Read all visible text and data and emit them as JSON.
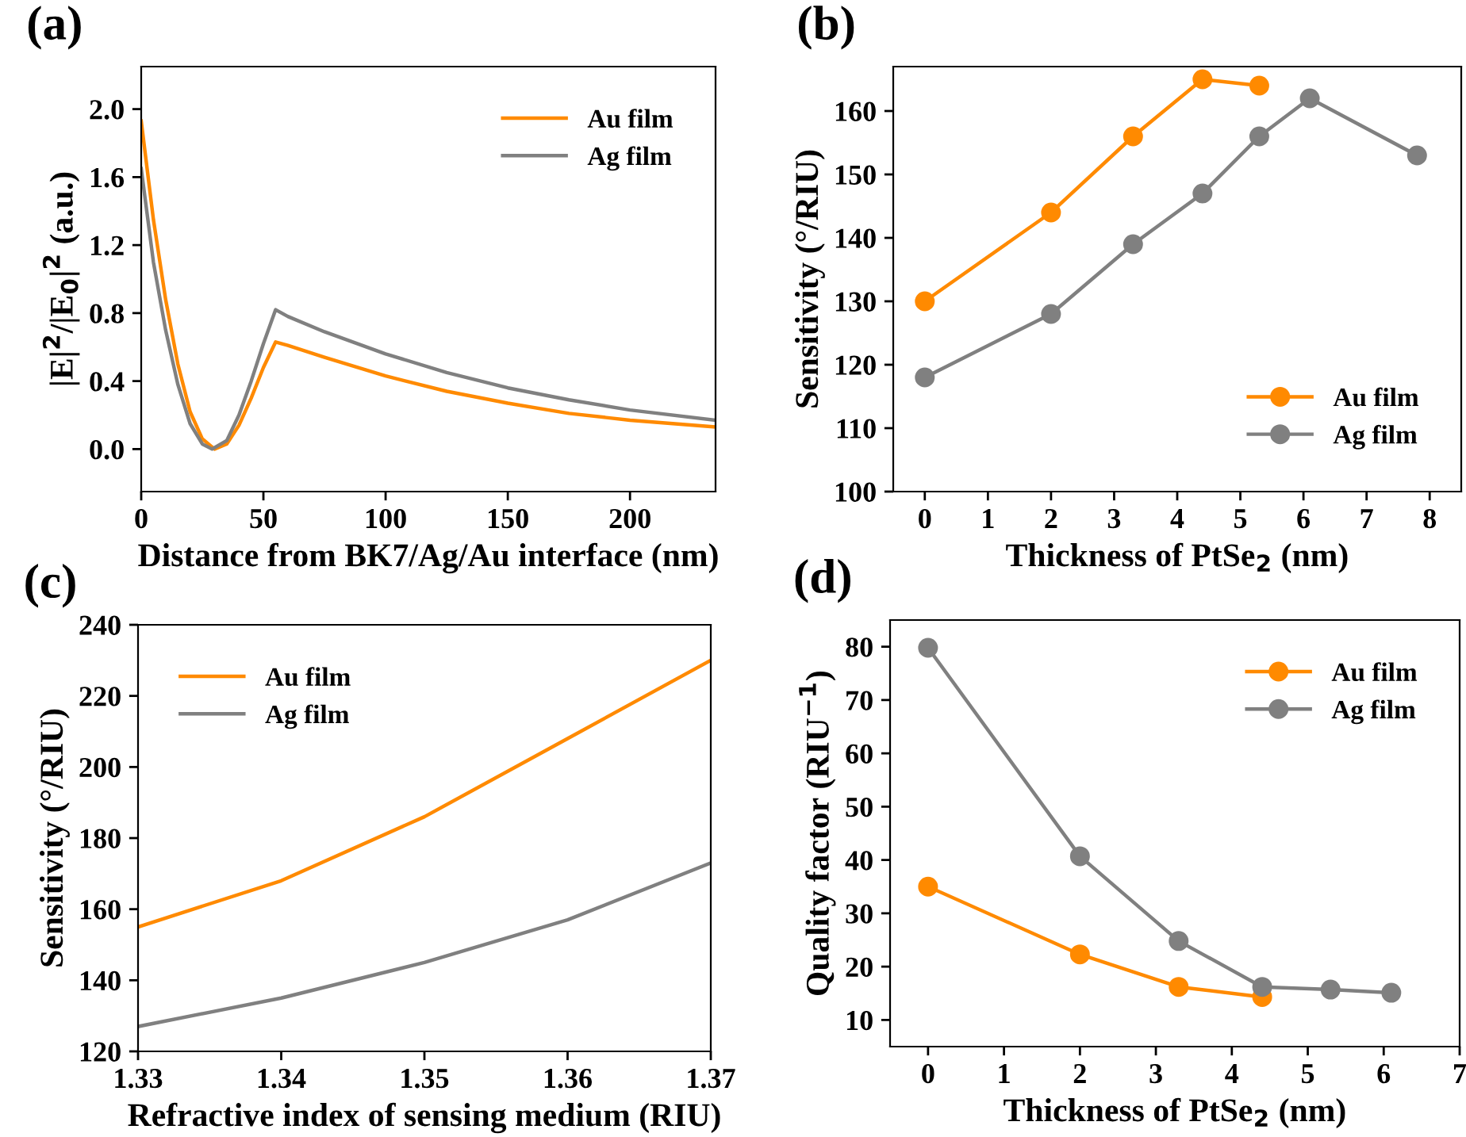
{
  "chart_data": [
    {
      "type": "line",
      "title": "(a)",
      "xlabel": "Distance from BK7/Ag/Au interface (nm)",
      "ylabel": "|E|$^{2}$/|E$_{0}$|$^{2}$ (a.u.)",
      "xlim": [
        0,
        235
      ],
      "xticks": [
        0,
        50,
        100,
        150,
        200
      ],
      "ylim": [
        -0.25,
        2.25
      ],
      "yticks": [
        {
          "value": 0,
          "label": "0.0"
        },
        {
          "value": 0.4,
          "label": "0.4"
        },
        {
          "value": 0.8,
          "label": "0.8"
        },
        {
          "value": 1.2,
          "label": "1.2"
        },
        {
          "value": 1.6,
          "label": "1.6"
        },
        {
          "value": 2.0,
          "label": "2.0"
        }
      ],
      "legend": "top right",
      "marker": "none",
      "grid": false,
      "series": [
        {
          "name": "Au film",
          "color": "#ff8a00",
          "x": [
            0,
            5,
            10,
            15,
            20,
            25,
            30,
            35,
            40,
            45,
            50,
            55,
            60,
            75,
            100,
            125,
            150,
            175,
            200,
            235
          ],
          "values": [
            1.93,
            1.35,
            0.88,
            0.5,
            0.22,
            0.06,
            0.0,
            0.03,
            0.14,
            0.3,
            0.48,
            0.63,
            0.61,
            0.54,
            0.43,
            0.34,
            0.27,
            0.21,
            0.17,
            0.13
          ]
        },
        {
          "name": "Ag film",
          "color": "#808080",
          "x": [
            0,
            5,
            10,
            15,
            20,
            25,
            29,
            35,
            40,
            45,
            50,
            55,
            60,
            75,
            100,
            125,
            150,
            175,
            200,
            235
          ],
          "values": [
            1.65,
            1.1,
            0.7,
            0.38,
            0.15,
            0.03,
            0.0,
            0.05,
            0.2,
            0.4,
            0.62,
            0.82,
            0.78,
            0.69,
            0.56,
            0.45,
            0.36,
            0.29,
            0.23,
            0.17
          ]
        }
      ]
    },
    {
      "type": "line",
      "title": "(b)",
      "xlabel": "Thickness of PtSe$_{2}$ (nm)",
      "ylabel": "Sensitivity (°/RIU)",
      "xlim": [
        -0.5,
        8.5
      ],
      "xticks": [
        0,
        1,
        2,
        3,
        4,
        5,
        6,
        7,
        8
      ],
      "ylim": [
        100,
        167
      ],
      "yticks": [
        100,
        110,
        120,
        130,
        140,
        150,
        160
      ],
      "legend": "bottom right",
      "marker": "circle",
      "grid": false,
      "series": [
        {
          "name": "Au film",
          "color": "#ff8a00",
          "x": [
            0,
            2,
            3.3,
            4.4,
            5.3
          ],
          "values": [
            130,
            144,
            156,
            165,
            164
          ]
        },
        {
          "name": "Ag film",
          "color": "#808080",
          "x": [
            0,
            2,
            3.3,
            4.4,
            5.3,
            6.1,
            7.8
          ],
          "values": [
            118,
            128,
            139,
            147,
            156,
            162,
            153
          ]
        }
      ]
    },
    {
      "type": "line",
      "title": "(c)",
      "xlabel": "Refractive index of sensing medium (RIU)",
      "ylabel": "Sensitivity (°/RIU)",
      "xlim": [
        1.33,
        1.37
      ],
      "xticks": [
        1.33,
        1.34,
        1.35,
        1.36,
        1.37
      ],
      "ylim": [
        120,
        240
      ],
      "yticks": [
        120,
        140,
        160,
        180,
        200,
        220,
        240
      ],
      "legend": "top left",
      "marker": "none",
      "grid": false,
      "series": [
        {
          "name": "Au film",
          "color": "#ff8a00",
          "x": [
            1.33,
            1.34,
            1.35,
            1.36,
            1.37
          ],
          "values": [
            155,
            168,
            186,
            208,
            230
          ]
        },
        {
          "name": "Ag film",
          "color": "#808080",
          "x": [
            1.33,
            1.34,
            1.35,
            1.36,
            1.37
          ],
          "values": [
            127,
            135,
            145,
            157,
            173
          ]
        }
      ]
    },
    {
      "type": "line",
      "title": "(d)",
      "xlabel": "Thickness of PtSe$_{2}$ (nm)",
      "ylabel": "Quality factor (RIU$^{−1}$)",
      "xlim": [
        -0.5,
        7
      ],
      "xticks": [
        0,
        1,
        2,
        3,
        4,
        5,
        6,
        7
      ],
      "ylim": [
        5,
        85
      ],
      "yticks": [
        10,
        20,
        30,
        40,
        50,
        60,
        70,
        80
      ],
      "legend": "top right",
      "marker": "circle",
      "grid": false,
      "series": [
        {
          "name": "Au film",
          "color": "#ff8a00",
          "x": [
            0,
            2,
            3.3,
            4.4
          ],
          "values": [
            35,
            22.3,
            16.2,
            14.3
          ]
        },
        {
          "name": "Ag film",
          "color": "#808080",
          "x": [
            0,
            2,
            3.3,
            4.4,
            5.3,
            6.1
          ],
          "values": [
            79.8,
            40.7,
            24.8,
            16.2,
            15.7,
            15.1
          ]
        }
      ]
    }
  ]
}
